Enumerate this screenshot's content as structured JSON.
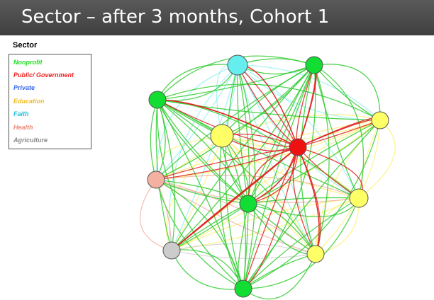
{
  "header": {
    "title": "Sector – after 3 months, Cohort 1"
  },
  "legend": {
    "heading": "Sector",
    "items": [
      {
        "label": "Nonprofit",
        "color": "#22dd22"
      },
      {
        "label": "Public/ Government",
        "color": "#ee2222"
      },
      {
        "label": "Private",
        "color": "#3366ee"
      },
      {
        "label": "Education",
        "color": "#eebb22"
      },
      {
        "label": "Faith",
        "color": "#22bbdd"
      },
      {
        "label": "Health",
        "color": "#ee8877"
      },
      {
        "label": "Agriculture",
        "color": "#888888"
      }
    ]
  },
  "node_colors": {
    "Nonprofit": "#11dd33",
    "Public/ Government": "#ee1111",
    "Education": "#ffff66",
    "Faith": "#66eeee",
    "Health": "#f4b0a0",
    "Agriculture": "#cccccc"
  },
  "edge_colors": {
    "Nonprofit": "#33cc33",
    "Public/ Government": "#e02020",
    "Education": "#ffee66",
    "Faith": "#88eeee",
    "Health": "#f2a898",
    "Agriculture": "#c8c8c8"
  },
  "network": {
    "nodes": [
      {
        "id": "faith-top",
        "sector": "Faith"
      },
      {
        "id": "np-top-right",
        "sector": "Nonprofit"
      },
      {
        "id": "np-left",
        "sector": "Nonprofit"
      },
      {
        "id": "edu-upper-mid",
        "sector": "Education"
      },
      {
        "id": "gov-center",
        "sector": "Public/ Government"
      },
      {
        "id": "edu-right-top",
        "sector": "Education"
      },
      {
        "id": "health-left",
        "sector": "Health"
      },
      {
        "id": "np-center",
        "sector": "Nonprofit"
      },
      {
        "id": "edu-right",
        "sector": "Education"
      },
      {
        "id": "agri-lower-left",
        "sector": "Agriculture"
      },
      {
        "id": "edu-bottom-right",
        "sector": "Education"
      },
      {
        "id": "np-bottom",
        "sector": "Nonprofit"
      }
    ]
  }
}
